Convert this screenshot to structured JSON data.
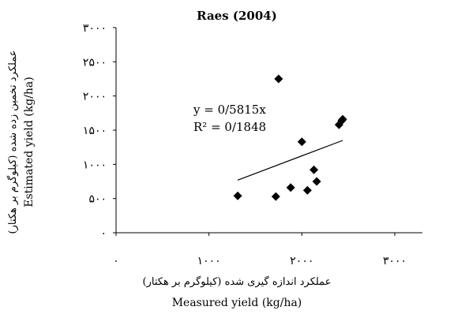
{
  "chart_data": {
    "type": "scatter",
    "title": "Raes (2004)",
    "xlabel_fa": "عملکرد اندازه گیری شده (کیلوگرم بر هکتار)",
    "xlabel_en": "Measured yield (kg/ha)",
    "ylabel_fa": "عملکرد تخمین زده شده (کیلوگرم بر هکتار)",
    "ylabel_en": "Estimated yield (kg/ha)",
    "xlim": [
      0,
      3000
    ],
    "ylim": [
      0,
      3000
    ],
    "x_ticks": [
      0,
      1000,
      2000,
      3000
    ],
    "y_ticks": [
      0,
      500,
      1000,
      1500,
      2000,
      2500,
      3000
    ],
    "x_tick_labels": [
      "۰",
      "۱۰۰۰",
      "۲۰۰۰",
      "۳۰۰۰"
    ],
    "y_tick_labels": [
      "۰",
      "۵۰۰",
      "۱۰۰۰",
      "۱۵۰۰",
      "۲۰۰۰",
      "۲۵۰۰",
      "۳۰۰۰"
    ],
    "points": [
      {
        "x": 1310,
        "y": 540
      },
      {
        "x": 1720,
        "y": 530
      },
      {
        "x": 1750,
        "y": 2250
      },
      {
        "x": 1880,
        "y": 660
      },
      {
        "x": 2000,
        "y": 1330
      },
      {
        "x": 2060,
        "y": 620
      },
      {
        "x": 2130,
        "y": 920
      },
      {
        "x": 2160,
        "y": 750
      },
      {
        "x": 2400,
        "y": 1580
      },
      {
        "x": 2430,
        "y": 1640
      },
      {
        "x": 2440,
        "y": 1660
      }
    ],
    "trendline": {
      "x_from": 1310,
      "x_to": 2440,
      "y_from": 770,
      "y_to": 1350
    },
    "equation": "y = 0/5815x",
    "r_squared": "R² = 0/1848",
    "marker_color": "#000000",
    "grid": false,
    "legend": "none"
  }
}
